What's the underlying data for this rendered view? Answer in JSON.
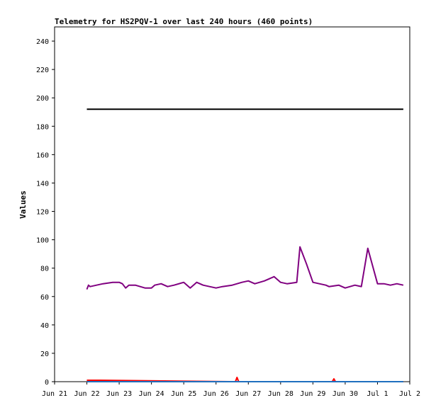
{
  "chart_data": {
    "type": "line",
    "title": "Telemetry for HS2PQV-1 over last 240 hours (460 points)",
    "xlabel": "",
    "ylabel": "Values",
    "grid": false,
    "xlim": [
      "Jun 21",
      "Jul 2"
    ],
    "ylim": [
      0,
      250
    ],
    "x_ticks": [
      "Jun 21",
      "Jun 22",
      "Jun 23",
      "Jun 24",
      "Jun 25",
      "Jun 26",
      "Jun 27",
      "Jun 28",
      "Jun 29",
      "Jun 30",
      "Jul 1",
      "Jul 2"
    ],
    "y_ticks": [
      0,
      20,
      40,
      60,
      80,
      100,
      120,
      140,
      160,
      180,
      200,
      220,
      240
    ],
    "series": [
      {
        "color": "#000000",
        "x": [
          1.0,
          10.8
        ],
        "y": [
          192,
          192
        ]
      },
      {
        "color": "#800080",
        "x": [
          1.0,
          1.05,
          1.1,
          1.3,
          1.5,
          1.8,
          2.0,
          2.1,
          2.2,
          2.3,
          2.5,
          2.8,
          3.0,
          3.1,
          3.3,
          3.5,
          3.7,
          4.0,
          4.2,
          4.4,
          4.6,
          4.8,
          5.0,
          5.2,
          5.5,
          5.8,
          6.0,
          6.2,
          6.5,
          6.8,
          7.0,
          7.2,
          7.5,
          7.6,
          7.8,
          8.0,
          8.4,
          8.5,
          8.8,
          9.0,
          9.3,
          9.5,
          9.7,
          10.0,
          10.2,
          10.4,
          10.6,
          10.8
        ],
        "y": [
          65,
          68,
          67,
          68,
          69,
          70,
          70,
          69,
          66,
          68,
          68,
          66,
          66,
          68,
          69,
          67,
          68,
          70,
          66,
          70,
          68,
          67,
          66,
          67,
          68,
          70,
          71,
          69,
          71,
          74,
          70,
          69,
          70,
          95,
          83,
          70,
          68,
          67,
          68,
          66,
          68,
          67,
          94,
          69,
          69,
          68,
          69,
          68
        ]
      },
      {
        "color": "#ff0000",
        "x": [
          1.0,
          1.4,
          5.5,
          5.6,
          5.65,
          5.7,
          6.8,
          8.5,
          8.6,
          8.65,
          8.7,
          10.8
        ],
        "y": [
          1,
          1,
          0,
          0,
          3,
          0,
          0,
          0,
          0,
          2,
          0,
          0
        ]
      },
      {
        "color": "#1f6fbf",
        "x": [
          1.0,
          10.8
        ],
        "y": [
          0,
          0
        ]
      }
    ]
  }
}
